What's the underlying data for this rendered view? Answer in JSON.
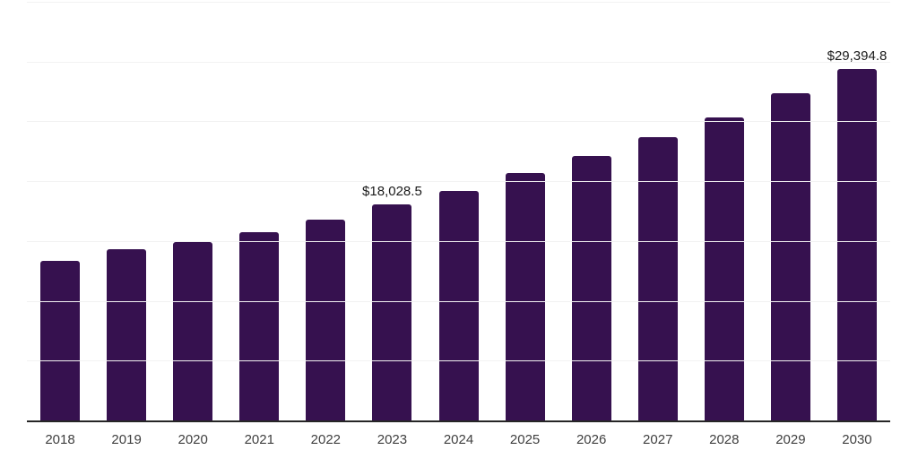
{
  "chart_data": {
    "type": "bar",
    "title": "",
    "xlabel": "",
    "ylabel": "",
    "categories": [
      "2018",
      "2019",
      "2020",
      "2021",
      "2022",
      "2023",
      "2024",
      "2025",
      "2026",
      "2027",
      "2028",
      "2029",
      "2030"
    ],
    "values": [
      13310,
      14290,
      14890,
      15730,
      16815,
      18028.5,
      19220,
      20670,
      22080,
      23690,
      25370,
      27320,
      29394.8
    ],
    "data_labels": {
      "2023": "$18,028.5",
      "2030": "$29,394.8"
    },
    "ylim": [
      0,
      35000
    ],
    "gridline_step": 5000,
    "grid": "horizontal-only",
    "legend": "none",
    "y_axis_tick_labels": "none",
    "colors": {
      "bar": "#36114F",
      "axis_line": "#262626",
      "gridline": "#F2F2F2",
      "tick_label": "#404040",
      "data_label": "#1A1A1A",
      "background": "#FFFFFF"
    }
  }
}
